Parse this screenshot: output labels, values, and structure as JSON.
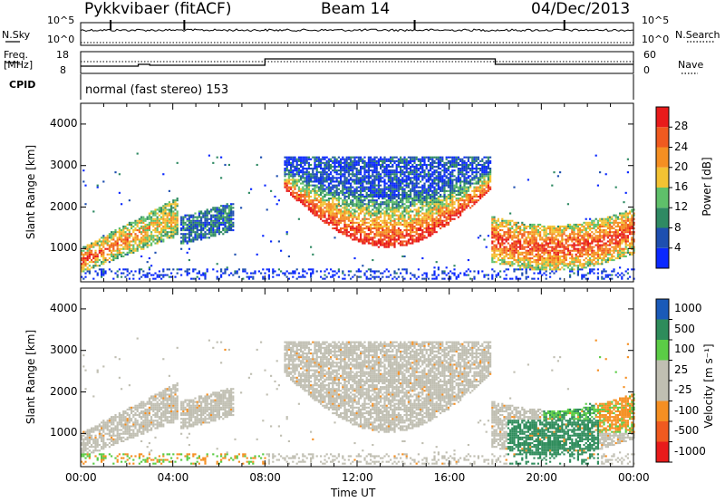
{
  "header": {
    "station": "Pykkvibaer (fitACF)",
    "beam": "Beam 14",
    "date": "04/Dec/2013"
  },
  "strips": {
    "nsky_label": "N.Sky",
    "nsearch_label": "N.Search",
    "noise_ticks_left": [
      "10^5",
      "10^0"
    ],
    "noise_ticks_right": [
      "10^5",
      "10^0"
    ],
    "freq_label_line1": "Freq.",
    "freq_label_line2": "[MHz]",
    "freq_ticks": [
      "18",
      "8"
    ],
    "nave_ticks": [
      "60",
      "0"
    ],
    "nave_label": "Nave",
    "cpid_label": "CPID",
    "cpid_text": "normal (fast stereo) 153"
  },
  "colors": {
    "power_scale": [
      "#0a28ff",
      "#1e4fb0",
      "#2f8a63",
      "#5fc06a",
      "#f3c233",
      "#f58f22",
      "#f05a1f",
      "#e81b1b"
    ],
    "velocity_scale": [
      "#e81b1b",
      "#f05a1f",
      "#f58f22",
      "#c0bfb2",
      "#c0bfb2",
      "#5bcc46",
      "#2e8c5b",
      "#1a5ab8"
    ],
    "ground_scatter": "#c0bfb2"
  },
  "chart_data": [
    {
      "type": "heatmap",
      "panel": "power",
      "ylabel": "Slant Range [km]",
      "yticks": [
        "1000",
        "2000",
        "3000",
        "4000"
      ],
      "ylim": [
        200,
        4500
      ],
      "xlim": [
        0,
        24
      ],
      "xticks": [
        "00:00",
        "04:00",
        "08:00",
        "12:00",
        "16:00",
        "20:00",
        "00:00"
      ],
      "colorbar_label": "Power [dB]",
      "colorbar_ticks": [
        "4",
        "8",
        "12",
        "16",
        "20",
        "24",
        "28"
      ],
      "colorbar_range": [
        0,
        30
      ],
      "scatter_regions": [
        {
          "t_start": 0.0,
          "t_end": 4.2,
          "r_low": 500,
          "r_high": 2000,
          "peak_db": 22
        },
        {
          "t_start": 4.3,
          "t_end": 6.6,
          "r_low": 1100,
          "r_high": 2100,
          "peak_db": 12
        },
        {
          "t_start": 8.8,
          "t_end": 17.8,
          "r_low": 800,
          "r_high": 3200,
          "peak_db": 30
        },
        {
          "t_start": 17.8,
          "t_end": 24.0,
          "r_low": 500,
          "r_high": 2200,
          "peak_db": 26
        }
      ]
    },
    {
      "type": "heatmap",
      "panel": "velocity",
      "ylabel": "Slant Range [km]",
      "yticks": [
        "1000",
        "2000",
        "3000",
        "4000"
      ],
      "ylim": [
        200,
        4500
      ],
      "xlim": [
        0,
        24
      ],
      "xticks": [
        "00:00",
        "04:00",
        "08:00",
        "12:00",
        "16:00",
        "20:00",
        "00:00"
      ],
      "xlabel": "Time UT",
      "colorbar_label": "Velocity [m s⁻¹]",
      "colorbar_ticks": [
        "1000",
        "500",
        "100",
        "25",
        "-25",
        "-100",
        "-500",
        "-1000"
      ],
      "scatter_regions": [
        {
          "t_start": 0.0,
          "t_end": 4.2,
          "r_low": 500,
          "r_high": 2000,
          "velocity": 0,
          "ground_scatter": true
        },
        {
          "t_start": 8.8,
          "t_end": 17.8,
          "r_low": 800,
          "r_high": 3200,
          "velocity": 0,
          "ground_scatter": true
        },
        {
          "t_start": 18.5,
          "t_end": 22.5,
          "r_low": 500,
          "r_high": 1200,
          "velocity": 300
        },
        {
          "t_start": 22.3,
          "t_end": 24.0,
          "r_low": 1000,
          "r_high": 2000,
          "velocity": -200
        }
      ]
    }
  ]
}
